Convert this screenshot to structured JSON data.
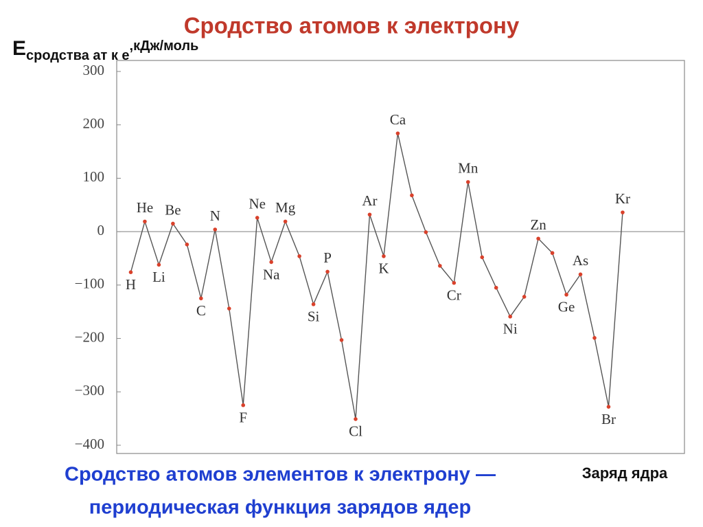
{
  "chart_data": {
    "type": "line",
    "title": "Сродство атомов к электрону",
    "y_label": {
      "main": "E",
      "sub": "сродства ат к е",
      "unit": ",кДж/моль"
    },
    "x_label": "Заряд ядра",
    "caption": [
      "Сродство атомов элементов к электрону —",
      "периодическая функция зарядов ядер"
    ],
    "x": [
      1,
      2,
      3,
      4,
      5,
      6,
      7,
      8,
      9,
      10,
      11,
      12,
      13,
      14,
      15,
      16,
      17,
      18,
      19,
      20,
      21,
      22,
      23,
      24,
      25,
      26,
      27,
      28,
      29,
      30,
      31,
      32,
      33,
      34,
      35,
      36
    ],
    "categories": [
      "H",
      "He",
      "Li",
      "Be",
      null,
      "C",
      "N",
      null,
      "F",
      "Ne",
      "Na",
      "Mg",
      null,
      "Si",
      "P",
      null,
      "Cl",
      "Ar",
      "K",
      "Ca",
      null,
      null,
      null,
      "Cr",
      "Mn",
      null,
      null,
      "Ni",
      null,
      "Zn",
      null,
      "Ge",
      "As",
      null,
      "Br",
      "Kr"
    ],
    "series": [
      {
        "color": "#555555",
        "marker_color": "#d9412b",
        "values": [
          -76,
          19,
          -62,
          15,
          -24,
          -125,
          4,
          -144,
          -325,
          26,
          -57,
          19,
          -46,
          -136,
          -75,
          -203,
          -351,
          32,
          -46,
          184,
          68,
          -1,
          -64,
          -96,
          93,
          -48,
          -105,
          -159,
          -122,
          -13,
          -40,
          -118,
          -80,
          -199,
          -328,
          36
        ]
      }
    ],
    "xlim": [
      0,
      40.4
    ],
    "ylim": [
      -400,
      300
    ],
    "yticks": [
      {
        "value": -400,
        "label": "−400"
      },
      {
        "value": -300,
        "label": "−300"
      },
      {
        "value": -200,
        "label": "−200"
      },
      {
        "value": -100,
        "label": "−100"
      },
      0,
      100,
      200,
      300
    ],
    "reference_line": 0
  }
}
